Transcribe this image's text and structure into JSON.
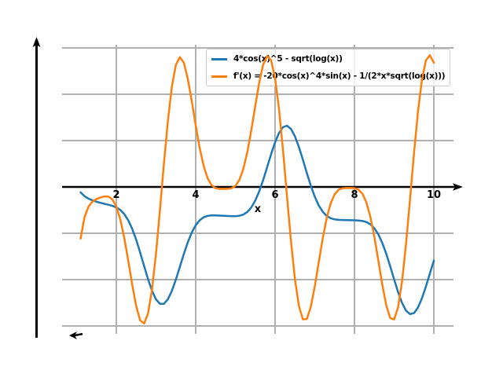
{
  "figure": {
    "background": "#ffffff",
    "note": "matplotlib-style line plot, no title, no y tick labels, center spines with arrowheads"
  },
  "chart_data": {
    "type": "line",
    "title": "",
    "xlabel": "x",
    "ylabel": "",
    "xlim": [
      0.6337,
      10.495
    ],
    "ylim": [
      -6.339,
      6.1356
    ],
    "x_ticks": [
      2,
      4,
      6,
      8,
      10
    ],
    "x_tick_labels": [
      "2",
      "4",
      "6",
      "8",
      "10"
    ],
    "y_tick_labels": [],
    "x_gridlines": [
      2,
      4,
      6,
      8,
      10
    ],
    "y_gridlines": [
      -6,
      -4,
      -2,
      0,
      2,
      4,
      6
    ],
    "grid": true,
    "grid_color": "#b0b0b0",
    "axis_color": "#000000",
    "x_axis_arrow": true,
    "y_axis_arrow": true,
    "legend_position": "upper right inside, curves drawn above legend",
    "sampling": {
      "x_start": 1.1,
      "x_end": 10.0,
      "x_step": 0.1
    },
    "series": [
      {
        "name": "4*cos(x)^5 - sqrt(log(x))",
        "color": "#1f77b4",
        "line_width": 2.5,
        "expr_js": "4*Math.pow(Math.cos(x),5)-Math.sqrt(Math.log(x))",
        "key_points": [
          [
            1.1,
            -0.23
          ],
          [
            1.5,
            -0.64
          ],
          [
            2.0,
            -0.88
          ],
          [
            2.5,
            -2.28
          ],
          [
            3.15,
            -5.06
          ],
          [
            3.7,
            -2.9
          ],
          [
            4.0,
            -1.65
          ],
          [
            4.5,
            -1.23
          ],
          [
            5.0,
            -1.26
          ],
          [
            5.5,
            -1.06
          ],
          [
            6.3,
            2.64
          ],
          [
            6.7,
            1.18
          ],
          [
            7.0,
            -0.42
          ],
          [
            7.5,
            -1.4
          ],
          [
            8.0,
            -1.44
          ],
          [
            8.5,
            -1.78
          ],
          [
            9.0,
            -3.99
          ],
          [
            9.4,
            -5.49
          ],
          [
            9.8,
            -4.3
          ],
          [
            10.0,
            -3.18
          ]
        ]
      },
      {
        "name": "f'(x) = -20*cos(x)^4*sin(x) - 1/(2*x*sqrt(log(x)))",
        "color": "#ff7f0e",
        "line_width": 2.5,
        "expr_js": "-20*Math.pow(Math.cos(x),4)*Math.sin(x)-1/(2*x*Math.sqrt(Math.log(x)))",
        "key_points": [
          [
            1.1,
            -2.23
          ],
          [
            1.75,
            -0.4
          ],
          [
            2.0,
            -0.85
          ],
          [
            2.2,
            -2.2
          ],
          [
            2.7,
            -5.9
          ],
          [
            3.1,
            -0.98
          ],
          [
            3.6,
            5.6
          ],
          [
            4.3,
            0.38
          ],
          [
            4.7,
            -0.09
          ],
          [
            5.3,
            1.5
          ],
          [
            5.9,
            5.47
          ],
          [
            6.3,
            -0.39
          ],
          [
            6.7,
            -5.71
          ],
          [
            7.5,
            -0.32
          ],
          [
            8.0,
            -0.05
          ],
          [
            8.5,
            -2.14
          ],
          [
            9.0,
            -5.72
          ],
          [
            9.5,
            1.45
          ],
          [
            9.9,
            5.69
          ],
          [
            10.0,
            5.36
          ]
        ]
      }
    ],
    "annotations": [
      {
        "type": "left-arrow-marker",
        "x": 0.97,
        "y": -6.41,
        "color": "#000000"
      }
    ]
  }
}
